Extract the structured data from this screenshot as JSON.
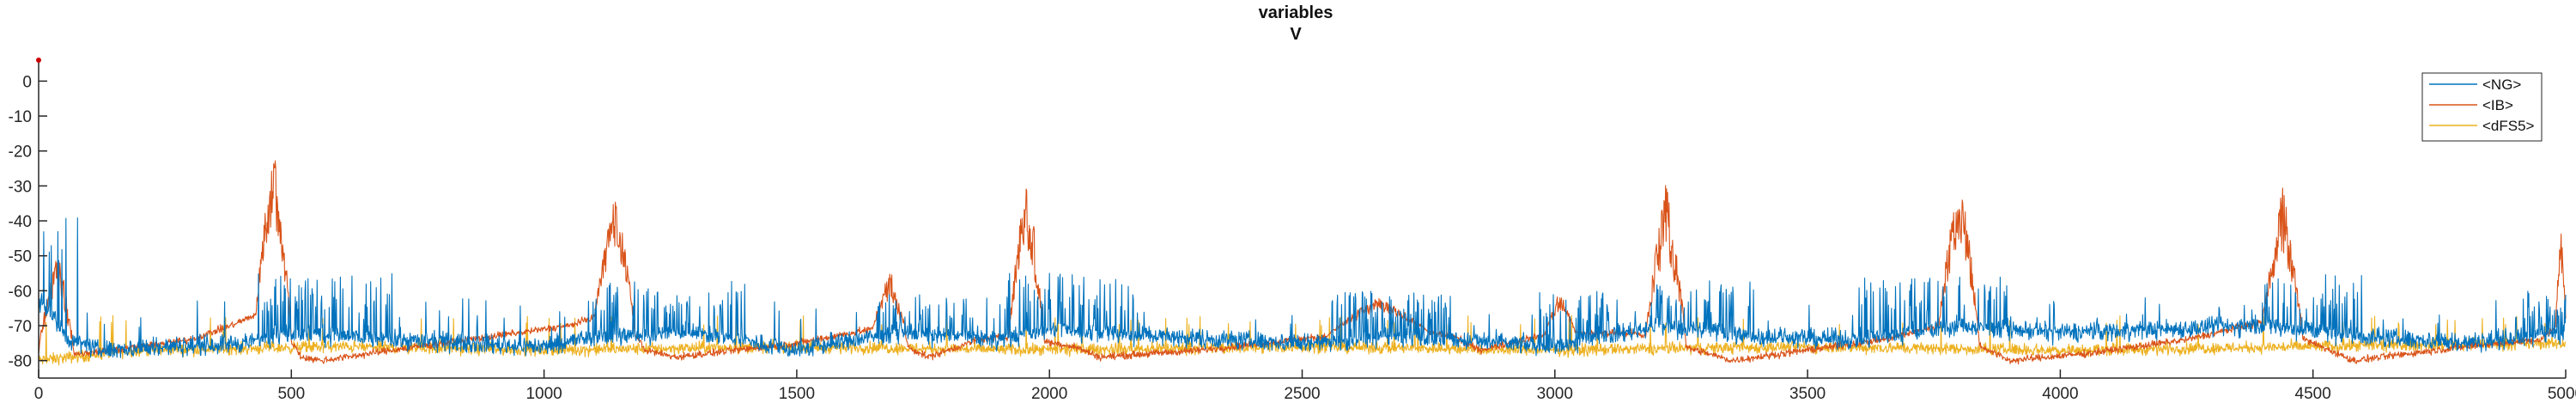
{
  "chart_data": {
    "type": "line",
    "title": "variables",
    "subtitle": "V",
    "xlabel": "",
    "ylabel": "",
    "xlim": [
      0,
      5000
    ],
    "ylim": [
      -85,
      6
    ],
    "xticks": [
      0,
      500,
      1000,
      1500,
      2000,
      2500,
      3000,
      3500,
      4000,
      4500,
      5000
    ],
    "yticks": [
      0,
      -10,
      -20,
      -30,
      -40,
      -50,
      -60,
      -70,
      -80
    ],
    "grid": false,
    "legend_position": "top-right",
    "series": [
      {
        "name": "<NG>",
        "color": "#0072BD",
        "baseline": [
          [
            0,
            -62
          ],
          [
            60,
            -74
          ],
          [
            120,
            -77
          ],
          [
            400,
            -75
          ],
          [
            500,
            -72
          ],
          [
            700,
            -74
          ],
          [
            1000,
            -76
          ],
          [
            1100,
            -73
          ],
          [
            1300,
            -72
          ],
          [
            1500,
            -77
          ],
          [
            1700,
            -72
          ],
          [
            1900,
            -74
          ],
          [
            2000,
            -71
          ],
          [
            2200,
            -73
          ],
          [
            2500,
            -75
          ],
          [
            2700,
            -73
          ],
          [
            3000,
            -76
          ],
          [
            3200,
            -70
          ],
          [
            3400,
            -73
          ],
          [
            3600,
            -74
          ],
          [
            3800,
            -70
          ],
          [
            4000,
            -72
          ],
          [
            4400,
            -70
          ],
          [
            4600,
            -73
          ],
          [
            4800,
            -75
          ],
          [
            5000,
            -72
          ]
        ],
        "noise_level": 4,
        "spike_bursts": [
          [
            0,
            80,
            -38
          ],
          [
            420,
            700,
            -55
          ],
          [
            1100,
            1400,
            -57
          ],
          [
            1650,
            1850,
            -61
          ],
          [
            1900,
            2200,
            -55
          ],
          [
            2550,
            2800,
            -60
          ],
          [
            2950,
            3100,
            -60
          ],
          [
            3200,
            3400,
            -57
          ],
          [
            3600,
            3900,
            -56
          ],
          [
            4400,
            4600,
            -55
          ],
          [
            4900,
            5000,
            -60
          ]
        ]
      },
      {
        "name": "<IB>",
        "color": "#D95319",
        "baseline": [
          [
            0,
            -78
          ],
          [
            80,
            -78
          ],
          [
            200,
            -76
          ],
          [
            300,
            -74
          ],
          [
            380,
            -70
          ],
          [
            460,
            -65
          ],
          [
            520,
            -79
          ],
          [
            560,
            -80
          ],
          [
            700,
            -77
          ],
          [
            900,
            -73
          ],
          [
            1050,
            -70
          ],
          [
            1150,
            -65
          ],
          [
            1200,
            -77
          ],
          [
            1260,
            -79
          ],
          [
            1500,
            -75
          ],
          [
            1650,
            -71
          ],
          [
            1760,
            -79
          ],
          [
            1860,
            -74
          ],
          [
            1930,
            -73
          ],
          [
            2050,
            -76
          ],
          [
            2100,
            -79
          ],
          [
            2300,
            -77
          ],
          [
            2550,
            -73
          ],
          [
            2700,
            -71
          ],
          [
            2800,
            -73
          ],
          [
            2850,
            -77
          ],
          [
            3000,
            -72
          ],
          [
            3150,
            -72
          ],
          [
            3280,
            -77
          ],
          [
            3350,
            -80
          ],
          [
            3500,
            -77
          ],
          [
            3650,
            -74
          ],
          [
            3760,
            -70
          ],
          [
            3830,
            -75
          ],
          [
            3900,
            -80
          ],
          [
            4050,
            -78
          ],
          [
            4250,
            -74
          ],
          [
            4400,
            -69
          ],
          [
            4500,
            -75
          ],
          [
            4580,
            -80
          ],
          [
            4800,
            -76
          ],
          [
            4950,
            -74
          ],
          [
            5000,
            -68
          ]
        ],
        "noise_level": 1.5,
        "bursts": [
          [
            0,
            70,
            -45
          ],
          [
            430,
            500,
            -18
          ],
          [
            1100,
            1180,
            -33
          ],
          [
            1650,
            1720,
            -53
          ],
          [
            1920,
            1990,
            -25
          ],
          [
            2550,
            2750,
            -62
          ],
          [
            2980,
            3040,
            -60
          ],
          [
            3180,
            3260,
            -27
          ],
          [
            3760,
            3840,
            -22
          ],
          [
            4400,
            4480,
            -30
          ],
          [
            4980,
            5000,
            -40
          ]
        ]
      },
      {
        "name": "<dFS5>",
        "color": "#EDB120",
        "baseline": [
          [
            0,
            -80
          ],
          [
            200,
            -77
          ],
          [
            600,
            -76
          ],
          [
            1000,
            -77
          ],
          [
            1500,
            -76
          ],
          [
            2000,
            -77
          ],
          [
            2500,
            -76
          ],
          [
            3000,
            -77
          ],
          [
            3500,
            -76
          ],
          [
            4000,
            -77
          ],
          [
            4500,
            -76
          ],
          [
            5000,
            -75
          ]
        ],
        "noise_level": 2.5,
        "spike_bursts": []
      }
    ]
  }
}
